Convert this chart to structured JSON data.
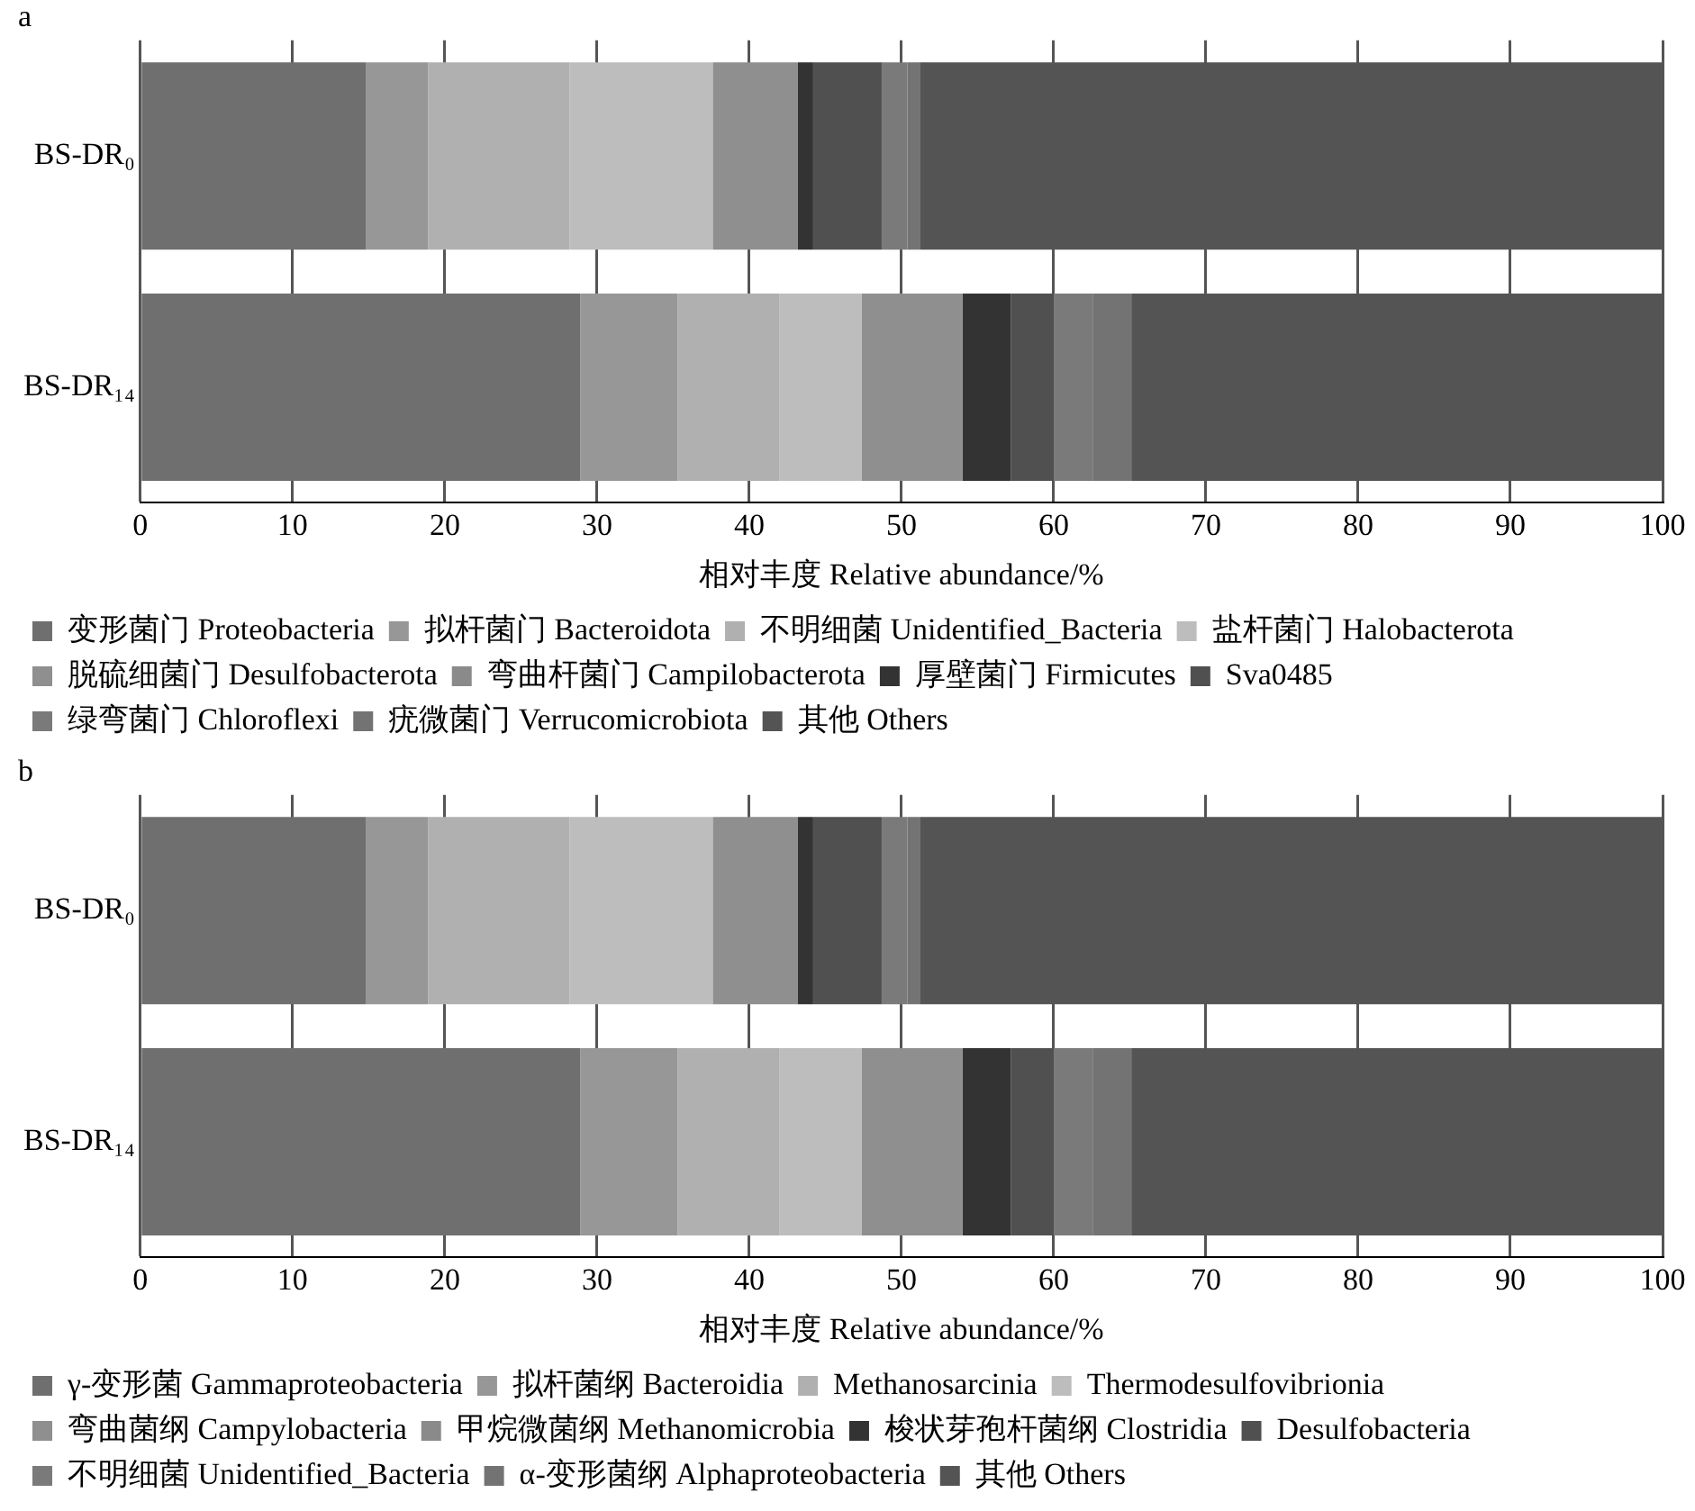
{
  "chart_data": [
    {
      "type": "bar",
      "orientation": "horizontal",
      "stacked": true,
      "title": "a",
      "xlabel": "相对丰度 Relative abundance/%",
      "categories": [
        "BS-DR₀",
        "BS-DR₁₄"
      ],
      "xlim": [
        0,
        100
      ],
      "xticks": [
        0,
        10,
        20,
        30,
        40,
        50,
        60,
        70,
        80,
        90,
        100
      ],
      "grid": "x",
      "legend": "bottom",
      "series": [
        {
          "name": "变形菌门 Proteobacteria",
          "color": "#6f6f6f",
          "values": [
            14.8,
            28.9
          ]
        },
        {
          "name": "拟杆菌门 Bacteroidota",
          "color": "#979797",
          "values": [
            4.1,
            6.4
          ]
        },
        {
          "name": "不明细菌 Unidentified_Bacteria",
          "color": "#b0b0b0",
          "values": [
            9.3,
            6.7
          ]
        },
        {
          "name": "盐杆菌门 Halobacterota",
          "color": "#bdbdbd",
          "values": [
            9.4,
            5.4
          ]
        },
        {
          "name": "脱硫细菌门 Desulfobacterota",
          "color": "#8f8f8f",
          "values": [
            5.6,
            6.6
          ]
        },
        {
          "name": "弯曲杆菌门 Campilobacterota",
          "color": "#8a8a8a",
          "values": [
            0,
            0
          ]
        },
        {
          "name": "厚壁菌门 Firmicutes",
          "color": "#333333",
          "values": [
            1.0,
            3.2
          ]
        },
        {
          "name": "Sva0485",
          "color": "#505050",
          "values": [
            4.5,
            2.8
          ]
        },
        {
          "name": "绿弯菌门 Chloroflexi",
          "color": "#7a7a7a",
          "values": [
            1.7,
            2.6
          ]
        },
        {
          "name": "疣微菌门 Verrucomicrobiota",
          "color": "#737373",
          "values": [
            0.8,
            2.5
          ]
        },
        {
          "name": "其他 Others",
          "color": "#545454",
          "values": [
            48.8,
            34.9
          ]
        }
      ]
    },
    {
      "type": "bar",
      "orientation": "horizontal",
      "stacked": true,
      "title": "b",
      "xlabel": "相对丰度 Relative abundance/%",
      "categories": [
        "BS-DR₀",
        "BS-DR₁₄"
      ],
      "xlim": [
        0,
        100
      ],
      "xticks": [
        0,
        10,
        20,
        30,
        40,
        50,
        60,
        70,
        80,
        90,
        100
      ],
      "grid": "x",
      "legend": "bottom",
      "series": [
        {
          "name": "γ-变形菌 Gammaproteobacteria",
          "color": "#6f6f6f",
          "values": [
            14.8,
            28.9
          ]
        },
        {
          "name": "拟杆菌纲 Bacteroidia",
          "color": "#979797",
          "values": [
            4.1,
            6.4
          ]
        },
        {
          "name": "Methanosarcinia",
          "color": "#b0b0b0",
          "values": [
            9.3,
            6.7
          ]
        },
        {
          "name": "Thermodesulfovibrionia",
          "color": "#bdbdbd",
          "values": [
            9.4,
            5.4
          ]
        },
        {
          "name": "弯曲菌纲 Campylobacteria",
          "color": "#8f8f8f",
          "values": [
            5.6,
            6.6
          ]
        },
        {
          "name": "甲烷微菌纲 Methanomicrobia",
          "color": "#8a8a8a",
          "values": [
            0,
            0
          ]
        },
        {
          "name": "梭状芽孢杆菌纲 Clostridia",
          "color": "#333333",
          "values": [
            1.0,
            3.2
          ]
        },
        {
          "name": "Desulfobacteria",
          "color": "#505050",
          "values": [
            4.5,
            2.8
          ]
        },
        {
          "name": "不明细菌 Unidentified_Bacteria",
          "color": "#7a7a7a",
          "values": [
            1.7,
            2.6
          ]
        },
        {
          "name": "α-变形菌纲 Alphaproteobacteria",
          "color": "#737373",
          "values": [
            0.8,
            2.5
          ]
        },
        {
          "name": "其他 Others",
          "color": "#545454",
          "values": [
            48.8,
            34.9
          ]
        }
      ]
    }
  ]
}
